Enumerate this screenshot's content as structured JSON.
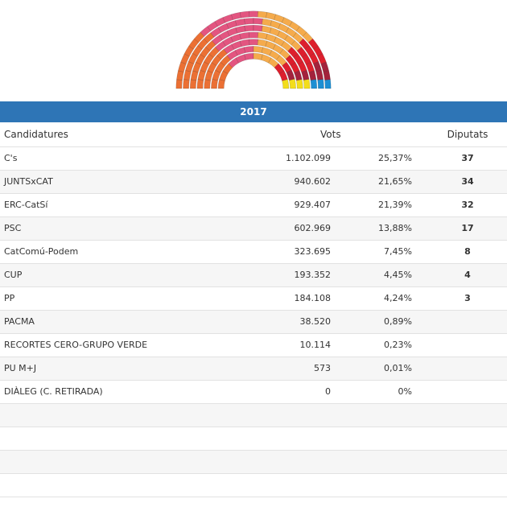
{
  "header": {
    "title": "2017"
  },
  "table": {
    "columns": [
      "Candidatures",
      "Vots",
      "Diputats"
    ],
    "rows": [
      [
        "C's",
        "1.102.099",
        "25,37%",
        37
      ],
      [
        "JUNTSxCAT",
        "940.602",
        "21,65%",
        34
      ],
      [
        "ERC-CatSí",
        "929.407",
        "21,39%",
        32
      ],
      [
        "PSC",
        "602.969",
        "13,88%",
        17
      ],
      [
        "CatComú-Podem",
        "323.695",
        "7,45%",
        8
      ],
      [
        "CUP",
        "193.352",
        "4,45%",
        4
      ],
      [
        "PP",
        "184.108",
        "4,24%",
        3
      ],
      [
        "PACMA",
        "38.520",
        "0,89%",
        null
      ],
      [
        "RECORTES CERO-GRUPO VERDE",
        "10.114",
        "0,23%",
        null
      ],
      [
        "PU M+J",
        "573",
        "0,01%",
        null
      ],
      [
        "DIÀLEG (C. RETIRADA)",
        "0",
        "0%",
        null
      ]
    ]
  },
  "hemicycle": {
    "colors": [
      "#eb7034",
      "#e35580",
      "#f5ab4c",
      "#dd1f2d",
      "#a3223c",
      "#f3dd1b",
      "#1c8fd3"
    ]
  }
}
